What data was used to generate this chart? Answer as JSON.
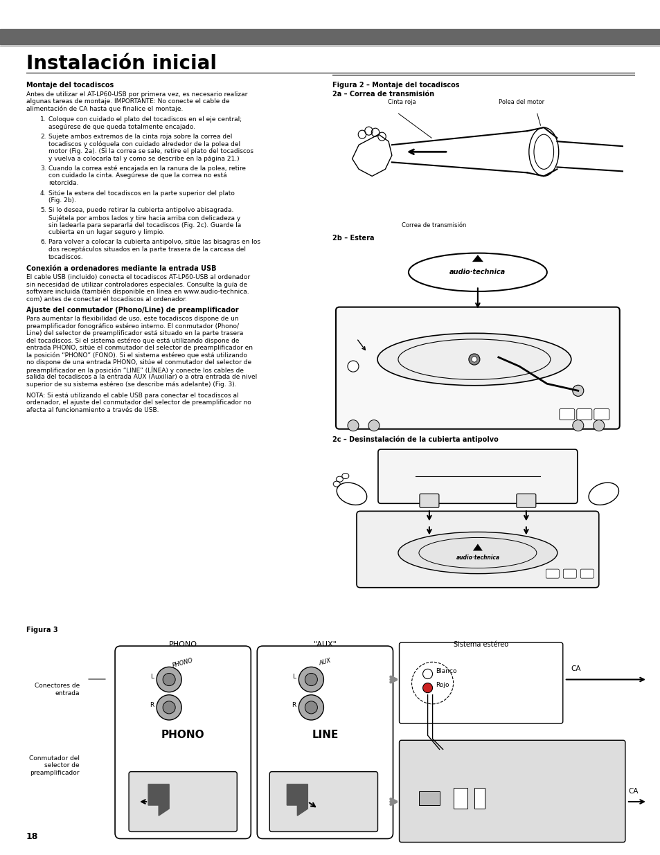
{
  "page_bg": "#ffffff",
  "header_bar_color": "#666666",
  "title": "Instalación inicial",
  "page_number": "18",
  "body_font_size": 6.5,
  "heading_font_size": 7.0,
  "section_heading1": "Montaje del tocadiscos",
  "section_text1a": "Antes de utilizar el AT-LP60-USB por primera vez, es necesario realizar",
  "section_text1b": "algunas tareas de montaje. IMPORTANTE: No conecte el cable de",
  "section_text1c": "alimentación de CA hasta que finalice el montaje.",
  "list_items": [
    [
      "Coloque con cuidado el plato del tocadiscos en el eje central;",
      "asegúrese de que queda totalmente encajado."
    ],
    [
      "Sujete ambos extremos de la cinta roja sobre la correa del",
      "tocadiscos y colóquela con cuidado alrededor de la polea del",
      "motor (Fig. 2a). (Si la correa se sale, retire el plato del tocadiscos",
      "y vuelva a colocarla tal y como se describe en la página 21.)"
    ],
    [
      "Cuando la correa esté encajada en la ranura de la polea, retire",
      "con cuidado la cinta. Asegúrese de que la correa no está",
      "retorcida."
    ],
    [
      "Sitúe la estera del tocadiscos en la parte superior del plato",
      "(Fig. 2b)."
    ],
    [
      "Si lo desea, puede retirar la cubierta antipolvo abisagrada.",
      "Sujétela por ambos lados y tire hacia arriba con delicadeza y",
      "sin ladearla para separarla del tocadiscos (Fig. 2c). Guarde la",
      "cubierta en un lugar seguro y limpio."
    ],
    [
      "Para volver a colocar la cubierta antipolvo, sitúe las bisagras en los",
      "dos receptáculos situados en la parte trasera de la carcasa del",
      "tocadiscos."
    ]
  ],
  "section_heading2": "Conexión a ordenadores mediante la entrada USB",
  "section_text2": [
    "El cable USB (incluido) conecta el tocadiscos AT-LP60-USB al ordenador",
    "sin necesidad de utilizar controladores especiales. Consulte la guía de",
    "software incluida (también disponible en línea en www.audio-technica.",
    "com) antes de conectar el tocadiscos al ordenador."
  ],
  "section_heading3": "Ajuste del conmutador (Phono/Line) de preamplificador",
  "section_text3": [
    "Para aumentar la flexibilidad de uso, este tocadiscos dispone de un",
    "preamplificador fonográfico estéreo interno. El conmutador (Phono/",
    "Line) del selector de preamplificador está situado en la parte trasera",
    "del tocadiscos. Si el sistema estéreo que está utilizando dispone de",
    "entrada PHONO, sitúe el conmutador del selector de preamplificador en",
    "la posición “PHONO” (FONO). Si el sistema estéreo que está utilizando",
    "no dispone de una entrada PHONO, sitúe el conmutador del selector de",
    "preamplificador en la posición “LINE” (LÍNEA) y conecte los cables de",
    "salida del tocadiscos a la entrada AUX (Auxiliar) o a otra entrada de nivel",
    "superior de su sistema estéreo (se describe más adelante) (Fig. 3)."
  ],
  "section_text3b": [
    "NOTA: Si está utilizando el cable USB para conectar el tocadiscos al",
    "ordenador, el ajuste del conmutador del selector de preamplificador no",
    "afecta al funcionamiento a través de USB."
  ],
  "right_fig2_title": "Figura 2 – Montaje del tocadiscos",
  "right_fig2a_title": "2a – Correa de transmisión",
  "right_fig2a_label1": "Cinta roja",
  "right_fig2a_label2": "Polea del motor",
  "right_fig2a_label3": "Correa de transmisión",
  "right_fig2b_title": "2b – Estera",
  "right_fig2c_title": "2c – Desinstalación de la cubierta antipolvo",
  "fig3_title": "Figura 3",
  "fig3_phono_label": "PHONO",
  "fig3_aux_label": "\"AUX\"",
  "fig3_line_label": "LINE",
  "fig3_phono_big": "PHONO",
  "fig3_conectores_label": "Conectores de\nentrada",
  "fig3_conmutador_label": "Conmutador del\nselector de\npreamplificador",
  "fig3_sistema_label": "Sistema estéreo",
  "fig3_blanco_label": "Blanco",
  "fig3_rojo_label": "Rojo",
  "fig3_ca_label": "CA"
}
